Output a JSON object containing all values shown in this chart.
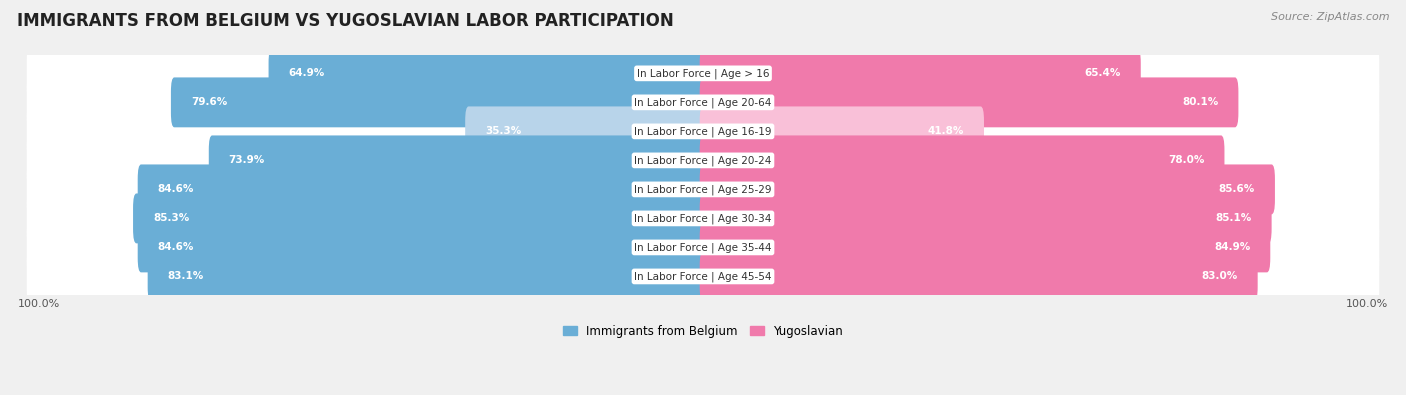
{
  "title": "IMMIGRANTS FROM BELGIUM VS YUGOSLAVIAN LABOR PARTICIPATION",
  "source": "Source: ZipAtlas.com",
  "categories": [
    "In Labor Force | Age > 16",
    "In Labor Force | Age 20-64",
    "In Labor Force | Age 16-19",
    "In Labor Force | Age 20-24",
    "In Labor Force | Age 25-29",
    "In Labor Force | Age 30-34",
    "In Labor Force | Age 35-44",
    "In Labor Force | Age 45-54"
  ],
  "belgium_values": [
    64.9,
    79.6,
    35.3,
    73.9,
    84.6,
    85.3,
    84.6,
    83.1
  ],
  "yugoslavian_values": [
    65.4,
    80.1,
    41.8,
    78.0,
    85.6,
    85.1,
    84.9,
    83.0
  ],
  "belgium_color": "#6aaed6",
  "yugoslavian_color": "#f07aab",
  "belgium_color_light": "#b8d4ea",
  "yugoslavian_color_light": "#f9c0d8",
  "max_value": 100.0,
  "bg_color": "#f0f0f0",
  "row_bg_color": "#ffffff",
  "bar_height": 0.72,
  "title_fontsize": 12,
  "label_fontsize": 7.5,
  "value_fontsize": 7.5,
  "legend_fontsize": 8.5,
  "source_fontsize": 8
}
